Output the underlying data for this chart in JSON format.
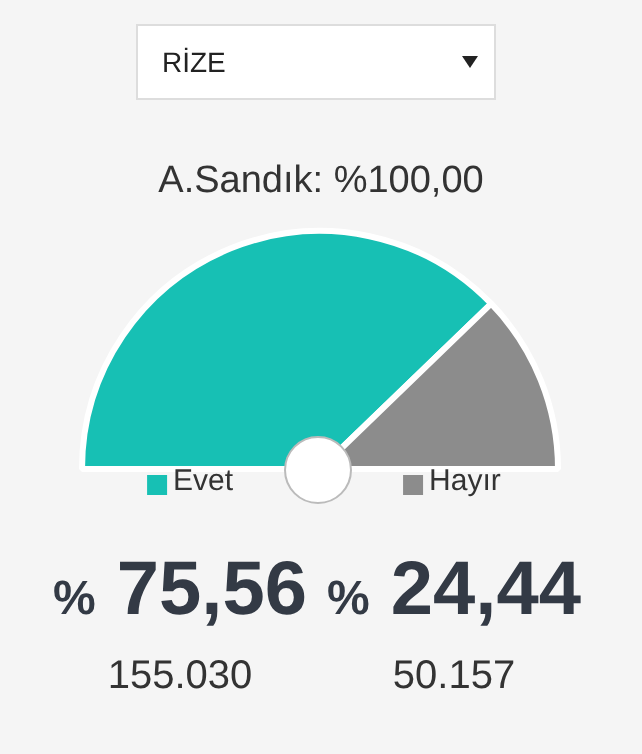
{
  "chart_data": {
    "type": "pie",
    "title": "A.Sandık: %100,00",
    "subtitle": "RİZE",
    "categories": [
      "Evet",
      "Hayır"
    ],
    "values": [
      75.56,
      24.44
    ],
    "colors": [
      "#17c0b4",
      "#8c8c8c"
    ],
    "value_labels": [
      "% 75,56",
      "% 24,44"
    ],
    "annotations": [
      "155.030",
      "50.157"
    ],
    "legend": "bottom"
  }
}
